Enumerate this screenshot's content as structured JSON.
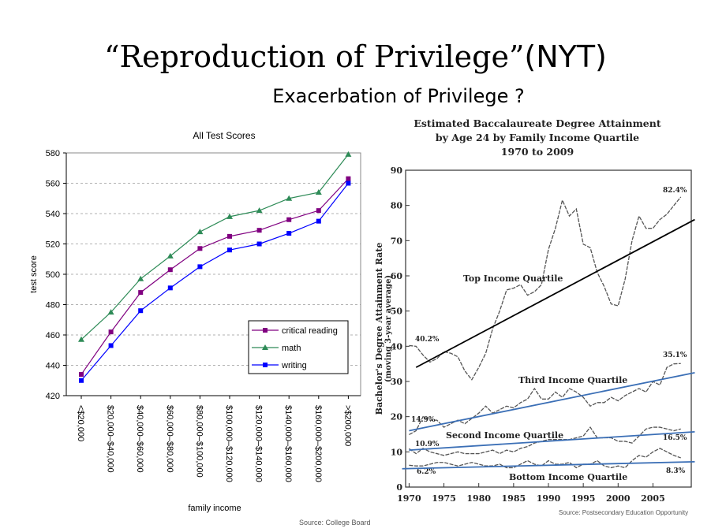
{
  "slide": {
    "title_prefix": "“Reproduction of Privilege”",
    "title_suffix": "(NYT)",
    "subtitle": "Exacerbation of Privilege ?"
  },
  "chart_data": [
    {
      "type": "line",
      "title": "All Test Scores",
      "xlabel": "family income",
      "ylabel": "test score",
      "ylim": [
        420,
        580
      ],
      "yticks": [
        420,
        440,
        460,
        480,
        500,
        520,
        540,
        560,
        580
      ],
      "grid": true,
      "legend": "lower-right",
      "categories": [
        "<$20,000",
        "$20,000–$40,000",
        "$40,000–$60,000",
        "$60,000–$80,000",
        "$80,000–$100,000",
        "$100,000–$120,000",
        "$120,000–$140,000",
        "$140,000–$160,000",
        "$160,000–$200,000",
        ">$200,000"
      ],
      "series": [
        {
          "name": "critical reading",
          "color": "#800080",
          "marker": "square",
          "values": [
            434,
            462,
            488,
            503,
            517,
            525,
            529,
            536,
            542,
            563
          ]
        },
        {
          "name": "math",
          "color": "#2e8b57",
          "marker": "triangle",
          "values": [
            457,
            475,
            497,
            512,
            528,
            538,
            542,
            550,
            554,
            579
          ]
        },
        {
          "name": "writing",
          "color": "#0000ff",
          "marker": "square",
          "values": [
            430,
            453,
            476,
            491,
            505,
            516,
            520,
            527,
            535,
            560
          ]
        }
      ],
      "source": "Source: College Board"
    },
    {
      "type": "line",
      "title_lines": [
        "Estimated Baccalaureate Degree Attainment",
        "by Age 24 by Family Income Quartile",
        "1970 to 2009"
      ],
      "ylabel_lines": [
        "Bachelor's Degree Attainment Rate",
        "(moving 3-year average)"
      ],
      "ylim": [
        0,
        90
      ],
      "yticks": [
        0,
        10,
        20,
        30,
        40,
        50,
        60,
        70,
        80,
        90
      ],
      "xlim": [
        1969.5,
        2010.5
      ],
      "xticks": [
        1970,
        1975,
        1980,
        1985,
        1990,
        1995,
        2000,
        2005
      ],
      "series": [
        {
          "name": "Top Income Quartile",
          "years": [
            1970,
            1971,
            1972,
            1973,
            1974,
            1975,
            1976,
            1977,
            1978,
            1979,
            1980,
            1981,
            1982,
            1983,
            1984,
            1985,
            1986,
            1987,
            1988,
            1989,
            1990,
            1991,
            1992,
            1993,
            1994,
            1995,
            1996,
            1997,
            1998,
            1999,
            2000,
            2001,
            2002,
            2003,
            2004,
            2005,
            2006,
            2007,
            2008,
            2009
          ],
          "values": [
            40.2,
            40,
            37.5,
            35.5,
            36.5,
            38.5,
            38,
            37,
            33,
            30.5,
            34,
            38,
            45,
            50,
            56,
            56.5,
            57.5,
            54.5,
            55.5,
            57.5,
            67.5,
            73.5,
            81.5,
            77,
            79,
            69,
            68,
            61,
            57,
            52,
            51.5,
            59,
            70,
            77,
            73.5,
            73.5,
            76,
            77.5,
            80,
            82.4
          ]
        },
        {
          "name": "Third Income Quartile",
          "years": [
            1970,
            1971,
            1972,
            1973,
            1974,
            1975,
            1976,
            1977,
            1978,
            1979,
            1980,
            1981,
            1982,
            1983,
            1984,
            1985,
            1986,
            1987,
            1988,
            1989,
            1990,
            1991,
            1992,
            1993,
            1994,
            1995,
            1996,
            1997,
            1998,
            1999,
            2000,
            2001,
            2002,
            2003,
            2004,
            2005,
            2006,
            2007,
            2008,
            2009
          ],
          "values": [
            14.9,
            16,
            20,
            19,
            19,
            17,
            18,
            19,
            18,
            19.5,
            21,
            23,
            21,
            22,
            23,
            22.5,
            24,
            25,
            28,
            25,
            25,
            27,
            25.5,
            28,
            27,
            25.5,
            23,
            24,
            24,
            25.5,
            24.5,
            26,
            27,
            28,
            27,
            30,
            29,
            34,
            35,
            35.1
          ]
        },
        {
          "name": "Second Income Quartile",
          "years": [
            1970,
            1971,
            1972,
            1973,
            1974,
            1975,
            1976,
            1977,
            1978,
            1979,
            1980,
            1981,
            1982,
            1983,
            1984,
            1985,
            1986,
            1987,
            1988,
            1989,
            1990,
            1991,
            1992,
            1993,
            1994,
            1995,
            1996,
            1997,
            1998,
            1999,
            2000,
            2001,
            2002,
            2003,
            2004,
            2005,
            2006,
            2007,
            2008,
            2009
          ],
          "values": [
            10.9,
            9.5,
            11,
            10,
            9.5,
            9,
            9.5,
            10,
            9.5,
            9.5,
            9.5,
            10,
            10.5,
            9.5,
            10.5,
            10,
            11,
            11.5,
            12.5,
            13,
            13.5,
            13.5,
            13.5,
            13.5,
            14,
            14.5,
            17,
            14,
            14,
            14,
            13,
            13,
            12.5,
            14.5,
            16.5,
            17,
            17,
            16.5,
            16,
            16.5
          ]
        },
        {
          "name": "Bottom Income Quartile",
          "years": [
            1970,
            1971,
            1972,
            1973,
            1974,
            1975,
            1976,
            1977,
            1978,
            1979,
            1980,
            1981,
            1982,
            1983,
            1984,
            1985,
            1986,
            1987,
            1988,
            1989,
            1990,
            1991,
            1992,
            1993,
            1994,
            1995,
            1996,
            1997,
            1998,
            1999,
            2000,
            2001,
            2002,
            2003,
            2004,
            2005,
            2006,
            2007,
            2008,
            2009
          ],
          "values": [
            6.2,
            6,
            6,
            6.5,
            7,
            7,
            6.5,
            6,
            6.5,
            7,
            6.5,
            6,
            6,
            6.5,
            5.5,
            5.5,
            6.5,
            7.5,
            6.5,
            6,
            7.5,
            6.5,
            6.5,
            7,
            5.5,
            6.5,
            6.5,
            7.5,
            6,
            5.5,
            6,
            5.5,
            7.5,
            9,
            8.5,
            10,
            11,
            10,
            9,
            8.3
          ]
        }
      ],
      "end_labels": [
        "40.2%",
        "14.9%",
        "10.9%",
        "6.2%",
        "82.4%",
        "35.1%",
        "16.5%",
        "8.3%"
      ],
      "trend_lines": [
        {
          "color": "#000000",
          "from": [
            1971,
            34
          ],
          "to": [
            2011,
            76
          ]
        },
        {
          "color": "#3b6fb6",
          "from": [
            1970,
            16
          ],
          "to": [
            2011,
            32.5
          ]
        },
        {
          "color": "#3b6fb6",
          "from": [
            1970,
            10.5
          ],
          "to": [
            2011,
            15.7
          ]
        },
        {
          "color": "#3b6fb6",
          "from": [
            1969,
            5.2
          ],
          "to": [
            2011,
            7.2
          ]
        }
      ],
      "source": "Source: Postsecondary Education Opportunity"
    }
  ]
}
